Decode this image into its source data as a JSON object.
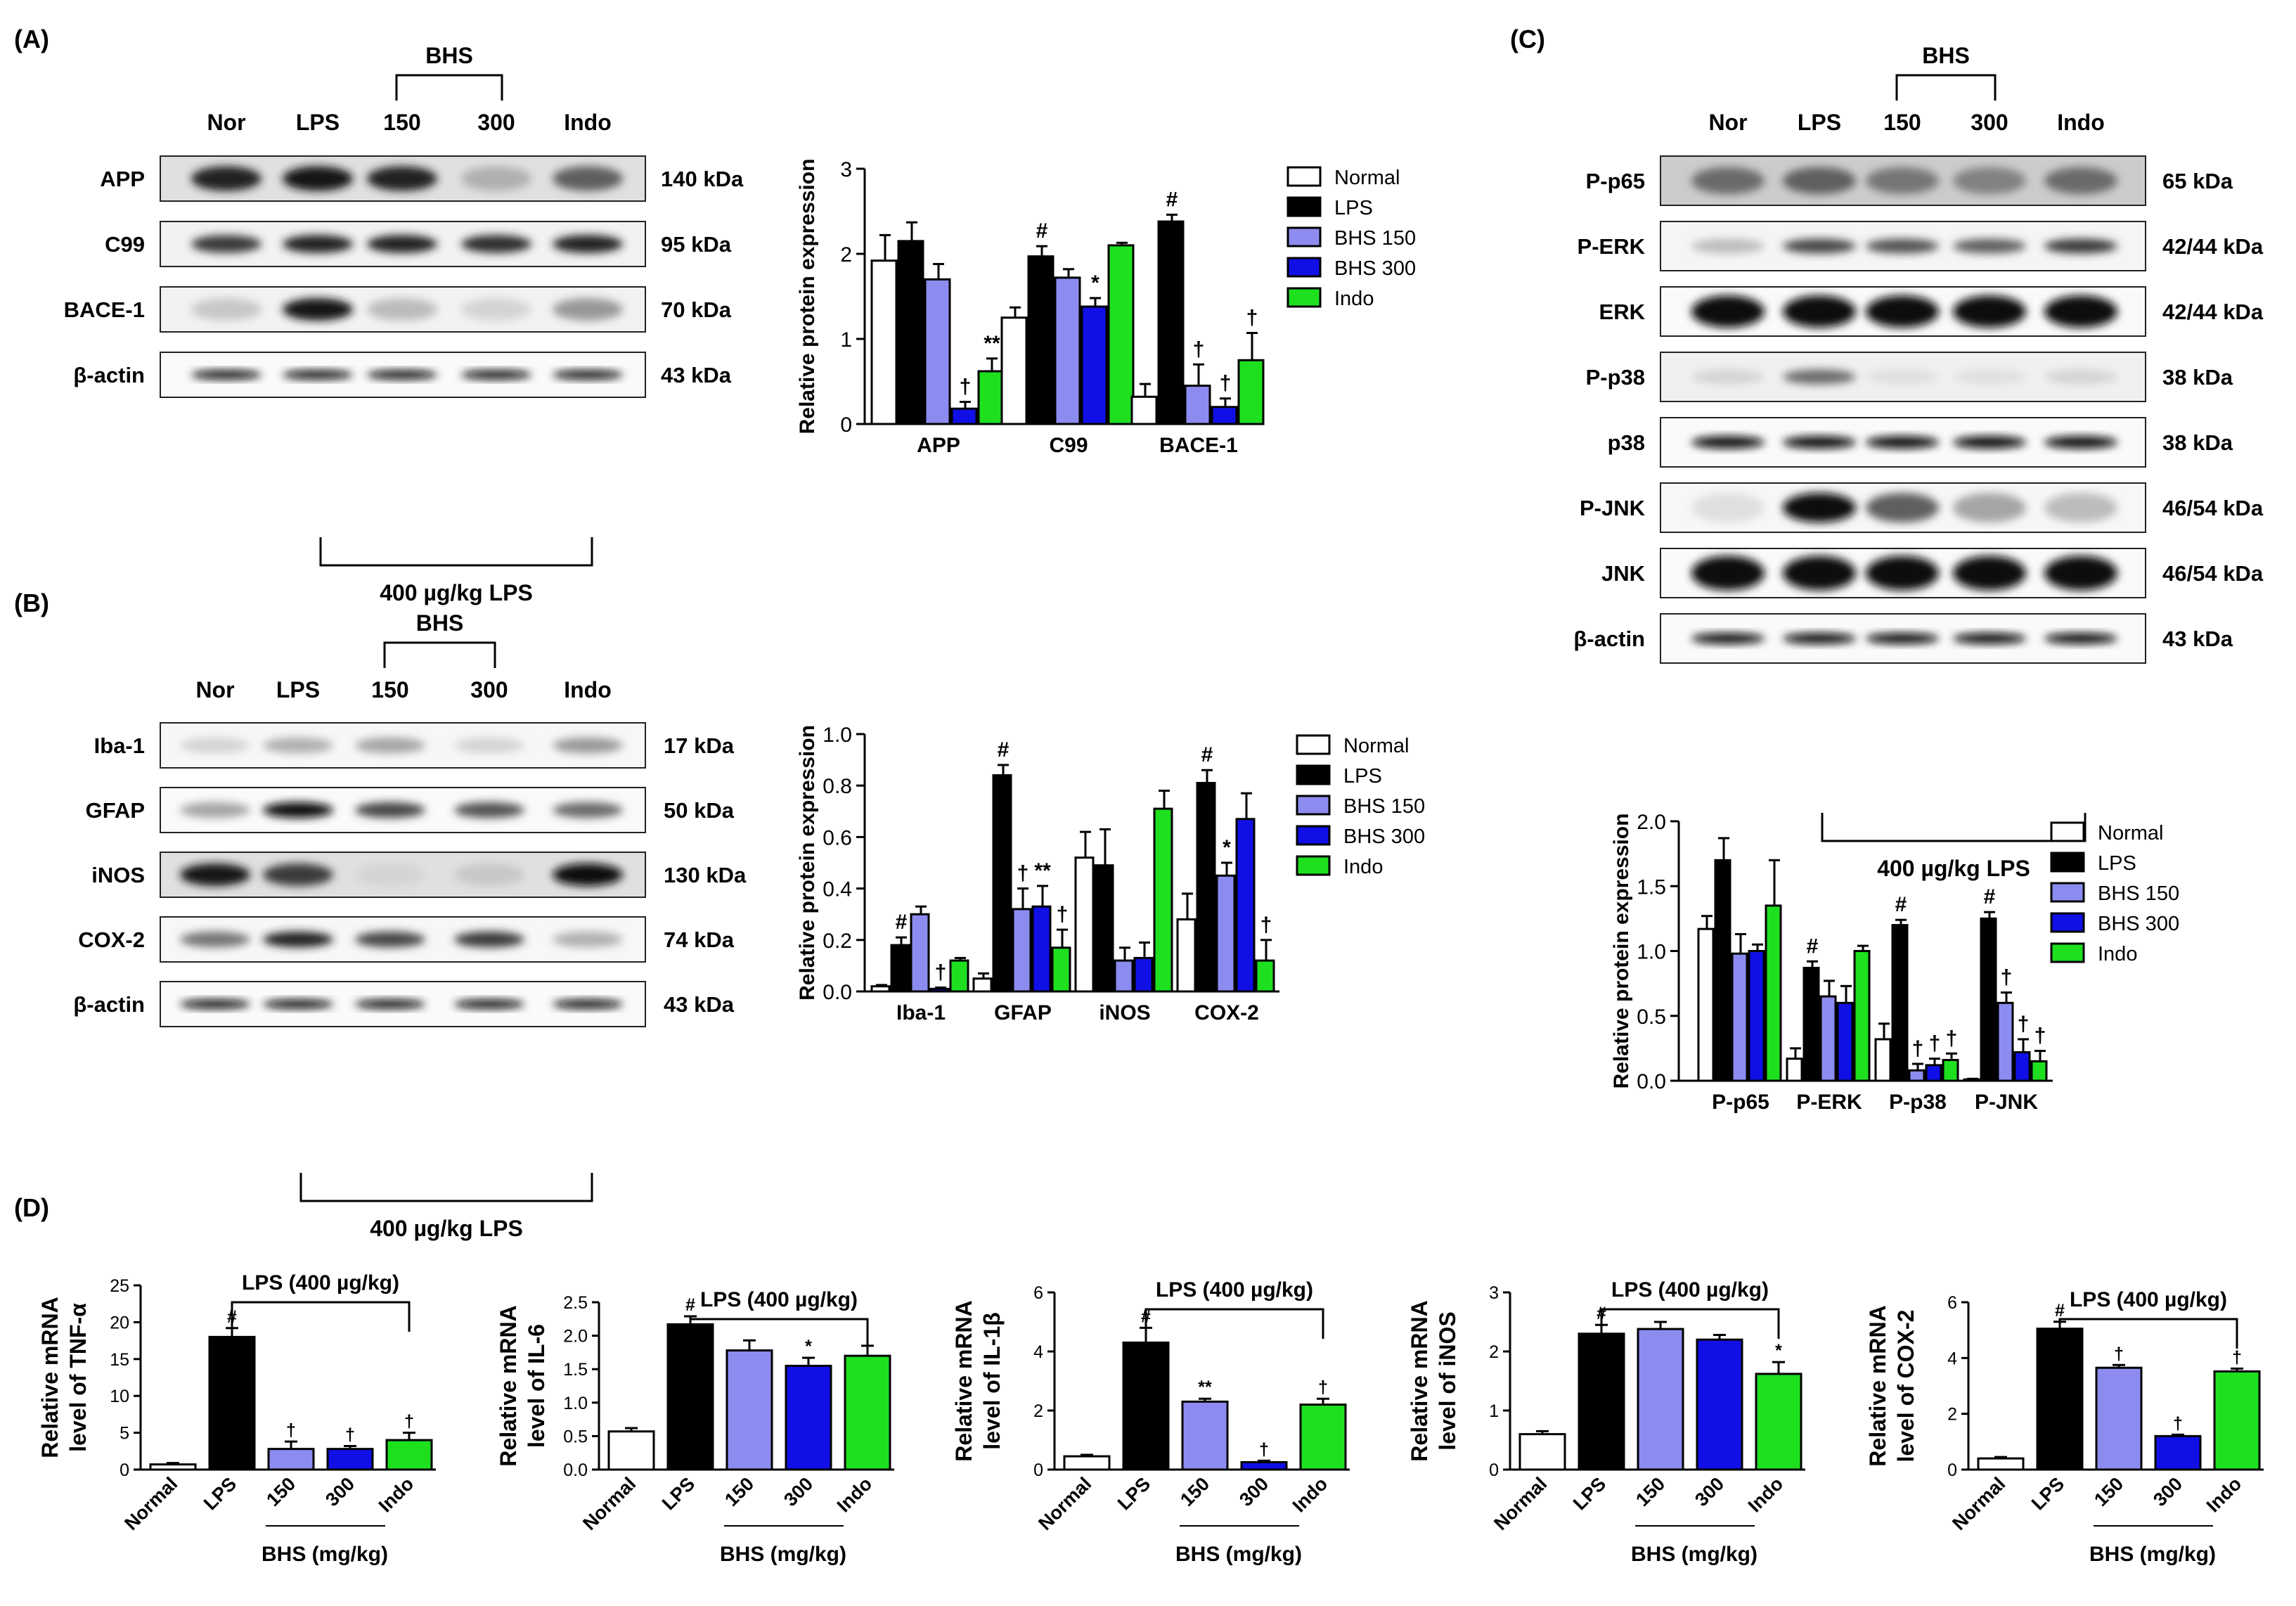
{
  "colors": {
    "normal": "#ffffff",
    "lps": "#000000",
    "bhs150": "#8c8cf0",
    "bhs300": "#1010e6",
    "indo": "#1fe01f",
    "axis": "#000000"
  },
  "symbols": {
    "hash": "#",
    "dagger": "†",
    "star": "*",
    "dstar": "**"
  },
  "panelA": {
    "label": "(A)",
    "blot": {
      "bhs_label": "BHS",
      "lanes": [
        "Nor",
        "LPS",
        "150",
        "300",
        "Indo"
      ],
      "bottom_label": "400 µg/kg LPS",
      "rows": [
        {
          "name": "APP",
          "kda": "140 kDa",
          "intensity": [
            0.85,
            0.9,
            0.85,
            0.25,
            0.6
          ],
          "thick": 0.55,
          "bg": 0.12
        },
        {
          "name": "C99",
          "kda": "95 kDa",
          "intensity": [
            0.75,
            0.85,
            0.85,
            0.8,
            0.85
          ],
          "thick": 0.4,
          "bg": 0.05
        },
        {
          "name": "BACE-1",
          "kda": "70 kDa",
          "intensity": [
            0.15,
            0.9,
            0.2,
            0.1,
            0.35
          ],
          "thick": 0.5,
          "bg": 0.05
        },
        {
          "name": "β-actin",
          "kda": "43 kDa",
          "intensity": [
            0.95,
            0.95,
            0.95,
            0.95,
            0.95
          ],
          "thick": 0.2,
          "bg": 0.02
        }
      ]
    },
    "chart": {
      "type": "bar",
      "ylabel": "Relative protein expression",
      "ylim": [
        0,
        3
      ],
      "yticks": [
        "0",
        "1",
        "2",
        "3"
      ],
      "categories": [
        "APP",
        "C99",
        "BACE-1"
      ],
      "series": [
        {
          "name": "Normal",
          "values": [
            1.92,
            1.25,
            0.32
          ],
          "err": [
            0.3,
            0.12,
            0.15
          ]
        },
        {
          "name": "LPS",
          "values": [
            2.15,
            1.97,
            2.38
          ],
          "err": [
            0.22,
            0.12,
            0.08
          ]
        },
        {
          "name": "BHS 150",
          "values": [
            1.7,
            1.72,
            0.45
          ],
          "err": [
            0.18,
            0.1,
            0.25
          ]
        },
        {
          "name": "BHS 300",
          "values": [
            0.18,
            1.38,
            0.2
          ],
          "err": [
            0.08,
            0.1,
            0.1
          ]
        },
        {
          "name": "Indo",
          "values": [
            0.62,
            2.1,
            0.75
          ],
          "err": [
            0.15,
            0.03,
            0.32
          ]
        }
      ],
      "marks": [
        {
          "cat": 0,
          "series": 3,
          "text": "†"
        },
        {
          "cat": 0,
          "series": 4,
          "text": "**"
        },
        {
          "cat": 1,
          "series": 1,
          "text": "#"
        },
        {
          "cat": 1,
          "series": 3,
          "text": "*"
        },
        {
          "cat": 2,
          "series": 1,
          "text": "#"
        },
        {
          "cat": 2,
          "series": 2,
          "text": "†"
        },
        {
          "cat": 2,
          "series": 3,
          "text": "†"
        },
        {
          "cat": 2,
          "series": 4,
          "text": "†"
        }
      ]
    }
  },
  "panelB": {
    "label": "(B)",
    "blot": {
      "bhs_label": "BHS",
      "lanes": [
        "Nor",
        "LPS",
        "150",
        "300",
        "Indo"
      ],
      "bottom_label": "400 µg/kg LPS",
      "rows": [
        {
          "name": "Iba-1",
          "kda": "17 kDa",
          "intensity": [
            0.1,
            0.25,
            0.3,
            0.1,
            0.35
          ],
          "thick": 0.35,
          "bg": 0.03
        },
        {
          "name": "GFAP",
          "kda": "50 kDa",
          "intensity": [
            0.3,
            0.95,
            0.7,
            0.65,
            0.55
          ],
          "thick": 0.35,
          "bg": 0.02
        },
        {
          "name": "iNOS",
          "kda": "130 kDa",
          "intensity": [
            0.9,
            0.75,
            0.1,
            0.15,
            0.95
          ],
          "thick": 0.5,
          "bg": 0.12
        },
        {
          "name": "COX-2",
          "kda": "74 kDa",
          "intensity": [
            0.5,
            0.85,
            0.7,
            0.75,
            0.25
          ],
          "thick": 0.35,
          "bg": 0.03
        },
        {
          "name": "β-actin",
          "kda": "43 kDa",
          "intensity": [
            0.95,
            0.95,
            0.95,
            0.95,
            0.95
          ],
          "thick": 0.2,
          "bg": 0.02
        }
      ]
    },
    "chart": {
      "type": "bar",
      "ylabel": "Relative protein expression",
      "ylim": [
        0,
        1.0
      ],
      "yticks": [
        "0.0",
        "0.2",
        "0.4",
        "0.6",
        "0.8",
        "1.0"
      ],
      "categories": [
        "Iba-1",
        "GFAP",
        "iNOS",
        "COX-2"
      ],
      "series": [
        {
          "name": "Normal",
          "values": [
            0.02,
            0.05,
            0.52,
            0.28
          ],
          "err": [
            0.005,
            0.02,
            0.1,
            0.1
          ]
        },
        {
          "name": "LPS",
          "values": [
            0.18,
            0.84,
            0.49,
            0.81
          ],
          "err": [
            0.03,
            0.04,
            0.14,
            0.05
          ]
        },
        {
          "name": "BHS 150",
          "values": [
            0.3,
            0.32,
            0.12,
            0.45
          ],
          "err": [
            0.03,
            0.08,
            0.05,
            0.05
          ]
        },
        {
          "name": "BHS 300",
          "values": [
            0.01,
            0.33,
            0.13,
            0.67
          ],
          "err": [
            0.005,
            0.08,
            0.06,
            0.1
          ]
        },
        {
          "name": "Indo",
          "values": [
            0.12,
            0.17,
            0.71,
            0.12
          ],
          "err": [
            0.01,
            0.07,
            0.07,
            0.08
          ]
        }
      ],
      "marks": [
        {
          "cat": 0,
          "series": 1,
          "text": "#"
        },
        {
          "cat": 0,
          "series": 3,
          "text": "†"
        },
        {
          "cat": 1,
          "series": 1,
          "text": "#"
        },
        {
          "cat": 1,
          "series": 2,
          "text": "†"
        },
        {
          "cat": 1,
          "series": 3,
          "text": "**"
        },
        {
          "cat": 1,
          "series": 4,
          "text": "†"
        },
        {
          "cat": 3,
          "series": 1,
          "text": "#"
        },
        {
          "cat": 3,
          "series": 2,
          "text": "*"
        },
        {
          "cat": 3,
          "series": 4,
          "text": "†"
        }
      ]
    }
  },
  "panelC": {
    "label": "(C)",
    "blot": {
      "bhs_label": "BHS",
      "lanes": [
        "Nor",
        "LPS",
        "150",
        "300",
        "Indo"
      ],
      "bottom_label": "400 µg/kg LPS",
      "rows": [
        {
          "name": "P-p65",
          "kda": "65 kDa",
          "intensity": [
            0.55,
            0.6,
            0.5,
            0.45,
            0.55
          ],
          "thick": 0.55,
          "bg": 0.2
        },
        {
          "name": "P-ERK",
          "kda": "42/44 kDa",
          "intensity": [
            0.2,
            0.7,
            0.65,
            0.6,
            0.75
          ],
          "thick": 0.3,
          "bg": 0.04
        },
        {
          "name": "ERK",
          "kda": "42/44 kDa",
          "intensity": [
            0.95,
            0.95,
            0.95,
            0.95,
            0.95
          ],
          "thick": 0.65,
          "bg": 0.02
        },
        {
          "name": "P-p38",
          "kda": "38 kDa",
          "intensity": [
            0.1,
            0.55,
            0.05,
            0.05,
            0.1
          ],
          "thick": 0.3,
          "bg": 0.06
        },
        {
          "name": "p38",
          "kda": "38 kDa",
          "intensity": [
            0.95,
            0.95,
            0.95,
            0.95,
            0.95
          ],
          "thick": 0.25,
          "bg": 0.02
        },
        {
          "name": "P-JNK",
          "kda": "46/54 kDa",
          "intensity": [
            0.05,
            0.95,
            0.6,
            0.3,
            0.2
          ],
          "thick": 0.6,
          "bg": 0.03
        },
        {
          "name": "JNK",
          "kda": "46/54 kDa",
          "intensity": [
            0.95,
            0.95,
            0.95,
            0.95,
            0.95
          ],
          "thick": 0.7,
          "bg": 0.02
        },
        {
          "name": "β-actin",
          "kda": "43 kDa",
          "intensity": [
            0.95,
            0.95,
            0.95,
            0.95,
            0.95
          ],
          "thick": 0.22,
          "bg": 0.02
        }
      ]
    },
    "chart": {
      "type": "bar",
      "ylabel": "Relative protein expression",
      "ylim": [
        0,
        2.0
      ],
      "yticks": [
        "0.0",
        "0.5",
        "1.0",
        "1.5",
        "2.0"
      ],
      "categories": [
        "P-p65",
        "P-ERK",
        "P-p38",
        "P-JNK"
      ],
      "series": [
        {
          "name": "Normal",
          "values": [
            1.17,
            0.17,
            0.32,
            0.01
          ],
          "err": [
            0.1,
            0.08,
            0.12,
            0.005
          ]
        },
        {
          "name": "LPS",
          "values": [
            1.7,
            0.87,
            1.2,
            1.25
          ],
          "err": [
            0.17,
            0.05,
            0.04,
            0.05
          ]
        },
        {
          "name": "BHS 150",
          "values": [
            0.98,
            0.65,
            0.08,
            0.6
          ],
          "err": [
            0.15,
            0.12,
            0.05,
            0.08
          ]
        },
        {
          "name": "BHS 300",
          "values": [
            1.0,
            0.6,
            0.12,
            0.22
          ],
          "err": [
            0.05,
            0.13,
            0.05,
            0.1
          ]
        },
        {
          "name": "Indo",
          "values": [
            1.35,
            1.0,
            0.16,
            0.15
          ],
          "err": [
            0.35,
            0.04,
            0.05,
            0.08
          ]
        }
      ],
      "marks": [
        {
          "cat": 1,
          "series": 1,
          "text": "#"
        },
        {
          "cat": 2,
          "series": 1,
          "text": "#"
        },
        {
          "cat": 2,
          "series": 2,
          "text": "†"
        },
        {
          "cat": 2,
          "series": 3,
          "text": "†"
        },
        {
          "cat": 2,
          "series": 4,
          "text": "†"
        },
        {
          "cat": 3,
          "series": 1,
          "text": "#"
        },
        {
          "cat": 3,
          "series": 2,
          "text": "†"
        },
        {
          "cat": 3,
          "series": 3,
          "text": "†"
        },
        {
          "cat": 3,
          "series": 4,
          "text": "†"
        }
      ]
    }
  },
  "panelD": {
    "label": "(D)",
    "bracket_label": "LPS (400 µg/kg)",
    "xlabel": "BHS (mg/kg)",
    "groups": [
      "Normal",
      "LPS",
      "150",
      "300",
      "Indo"
    ],
    "charts": [
      {
        "ylabel1": "Relative mRNA",
        "ylabel2": "level of TNF-α",
        "ylim": [
          0,
          25
        ],
        "yticks": [
          "0",
          "5",
          "10",
          "15",
          "20",
          "25"
        ],
        "values": [
          0.7,
          18.0,
          2.8,
          2.8,
          4.0
        ],
        "err": [
          0.2,
          1.2,
          1.0,
          0.4,
          1.0
        ],
        "marks": [
          "",
          "#",
          "†",
          "†",
          "†"
        ]
      },
      {
        "ylabel1": "Relative mRNA",
        "ylabel2": "level of IL-6",
        "ylim": [
          0,
          2.5
        ],
        "yticks": [
          "0.0",
          "0.5",
          "1.0",
          "1.5",
          "2.0",
          "2.5"
        ],
        "values": [
          0.57,
          2.17,
          1.78,
          1.55,
          1.7
        ],
        "err": [
          0.05,
          0.12,
          0.15,
          0.12,
          0.15
        ],
        "marks": [
          "",
          "#",
          "",
          "*",
          ""
        ]
      },
      {
        "ylabel1": "Relative mRNA",
        "ylabel2": "level of IL-1β",
        "ylim": [
          0,
          6
        ],
        "yticks": [
          "0",
          "2",
          "4",
          "6"
        ],
        "values": [
          0.45,
          4.3,
          2.3,
          0.25,
          2.2
        ],
        "err": [
          0.05,
          0.5,
          0.1,
          0.05,
          0.2
        ],
        "marks": [
          "",
          "#",
          "**",
          "†",
          "†"
        ]
      },
      {
        "ylabel1": "Relative mRNA",
        "ylabel2": "level of iNOS",
        "ylim": [
          0,
          3
        ],
        "yticks": [
          "0",
          "1",
          "2",
          "3"
        ],
        "values": [
          0.6,
          2.3,
          2.38,
          2.2,
          1.62
        ],
        "err": [
          0.05,
          0.15,
          0.12,
          0.08,
          0.2
        ],
        "marks": [
          "",
          "#",
          "",
          "",
          "*"
        ]
      },
      {
        "ylabel1": "Relative mRNA",
        "ylabel2": "level of COX-2",
        "ylim": [
          0,
          6
        ],
        "yticks": [
          "0",
          "2",
          "4",
          "6"
        ],
        "values": [
          0.4,
          5.05,
          3.65,
          1.2,
          3.52
        ],
        "err": [
          0.05,
          0.25,
          0.1,
          0.05,
          0.1
        ],
        "marks": [
          "",
          "#",
          "†",
          "†",
          "†"
        ]
      }
    ]
  }
}
